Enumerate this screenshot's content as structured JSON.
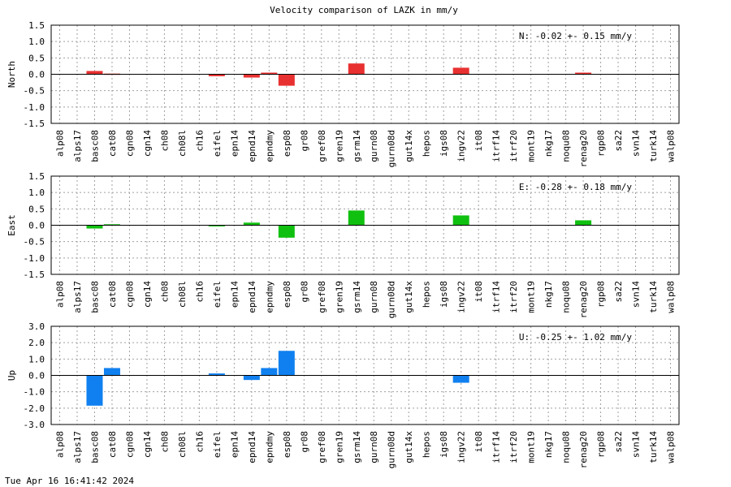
{
  "title": "Velocity comparison of LAZK in mm/y",
  "timestamp": "Tue Apr 16 16:41:42 2024",
  "chart_data": [
    {
      "type": "bar",
      "ylabel": "North",
      "color": "#e83030",
      "ylim": [
        -1.5,
        1.5
      ],
      "yticks": [
        "1.5",
        "1.0",
        "0.5",
        "0.0",
        "-0.5",
        "-1.0",
        "-1.5"
      ],
      "ytick_values": [
        1.5,
        1.0,
        0.5,
        0.0,
        -0.5,
        -1.0,
        -1.5
      ],
      "stat": "N:  -0.02 +-  0.15 mm/y",
      "grid": true,
      "categories": [
        "alp08",
        "alps17",
        "basc08",
        "cat08",
        "cgn08",
        "cgn14",
        "ch08",
        "ch08l",
        "ch16",
        "eifel",
        "epn14",
        "epnd14",
        "epndmy",
        "esp08",
        "gr08",
        "gref08",
        "gren19",
        "gsrm14",
        "gurn08",
        "gurn08d",
        "gut14x",
        "hepos",
        "igs08",
        "ingv22",
        "it08",
        "itrf14",
        "itrf20",
        "mont19",
        "nkg17",
        "noqu08",
        "renag20",
        "rgp08",
        "sa22",
        "svn14",
        "turk14",
        "walp08"
      ],
      "values": [
        null,
        null,
        0.1,
        0.02,
        null,
        null,
        null,
        null,
        null,
        -0.06,
        null,
        -0.1,
        0.05,
        -0.35,
        null,
        null,
        null,
        0.33,
        null,
        null,
        null,
        null,
        null,
        0.2,
        null,
        null,
        null,
        null,
        null,
        null,
        0.05,
        null,
        null,
        null,
        null,
        null
      ]
    },
    {
      "type": "bar",
      "ylabel": "East",
      "color": "#10c010",
      "ylim": [
        -1.5,
        1.5
      ],
      "yticks": [
        "1.5",
        "1.0",
        "0.5",
        "0.0",
        "-0.5",
        "-1.0",
        "-1.5"
      ],
      "ytick_values": [
        1.5,
        1.0,
        0.5,
        0.0,
        -0.5,
        -1.0,
        -1.5
      ],
      "stat": "E:  -0.28 +-  0.18 mm/y",
      "grid": true,
      "categories": [
        "alp08",
        "alps17",
        "basc08",
        "cat08",
        "cgn08",
        "cgn14",
        "ch08",
        "ch08l",
        "ch16",
        "eifel",
        "epn14",
        "epnd14",
        "epndmy",
        "esp08",
        "gr08",
        "gref08",
        "gren19",
        "gsrm14",
        "gurn08",
        "gurn08d",
        "gut14x",
        "hepos",
        "igs08",
        "ingv22",
        "it08",
        "itrf14",
        "itrf20",
        "mont19",
        "nkg17",
        "noqu08",
        "renag20",
        "rgp08",
        "sa22",
        "svn14",
        "turk14",
        "walp08"
      ],
      "values": [
        null,
        null,
        -0.1,
        0.03,
        null,
        null,
        null,
        null,
        null,
        -0.03,
        null,
        0.08,
        null,
        -0.38,
        null,
        null,
        null,
        0.45,
        null,
        null,
        null,
        null,
        null,
        0.3,
        null,
        null,
        null,
        null,
        null,
        null,
        0.15,
        null,
        null,
        null,
        null,
        null
      ]
    },
    {
      "type": "bar",
      "ylabel": "Up",
      "color": "#1080f0",
      "ylim": [
        -3.0,
        3.0
      ],
      "yticks": [
        "3.0",
        "2.0",
        "1.0",
        "0.0",
        "-1.0",
        "-2.0",
        "-3.0"
      ],
      "ytick_values": [
        3.0,
        2.0,
        1.0,
        0.0,
        -1.0,
        -2.0,
        -3.0
      ],
      "stat": "U:  -0.25 +-  1.02 mm/y",
      "grid": true,
      "categories": [
        "alp08",
        "alps17",
        "basc08",
        "cat08",
        "cgn08",
        "cgn14",
        "ch08",
        "ch08l",
        "ch16",
        "eifel",
        "epn14",
        "epnd14",
        "epndmy",
        "esp08",
        "gr08",
        "gref08",
        "gren19",
        "gsrm14",
        "gurn08",
        "gurn08d",
        "gut14x",
        "hepos",
        "igs08",
        "ingv22",
        "it08",
        "itrf14",
        "itrf20",
        "mont19",
        "nkg17",
        "noqu08",
        "renag20",
        "rgp08",
        "sa22",
        "svn14",
        "turk14",
        "walp08"
      ],
      "values": [
        null,
        null,
        -1.85,
        0.45,
        null,
        null,
        null,
        null,
        null,
        0.12,
        null,
        -0.28,
        0.45,
        1.5,
        null,
        null,
        null,
        null,
        null,
        null,
        null,
        null,
        null,
        -0.45,
        null,
        null,
        null,
        null,
        null,
        null,
        null,
        null,
        null,
        null,
        null,
        null
      ]
    }
  ]
}
